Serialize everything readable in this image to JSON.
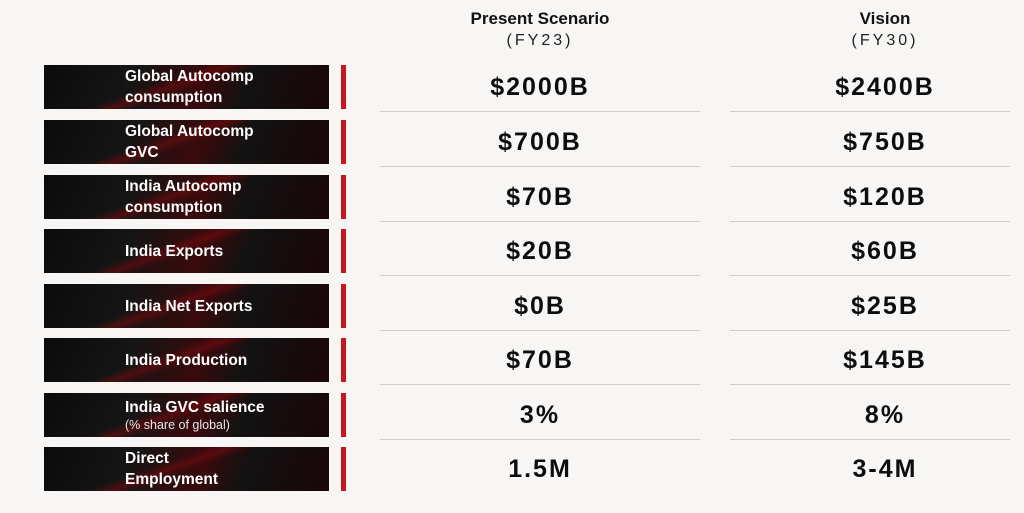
{
  "columns": {
    "present": {
      "title": "Present Scenario",
      "subtitle": "(FY23)"
    },
    "vision": {
      "title": "Vision",
      "subtitle": "(FY30)"
    }
  },
  "rows": [
    {
      "label_line1": "Global Autocomp",
      "label_line2": "consumption",
      "note": "",
      "present": "$2000B",
      "vision": "$2400B"
    },
    {
      "label_line1": "Global Autocomp",
      "label_line2": "GVC",
      "note": "",
      "present": "$700B",
      "vision": "$750B"
    },
    {
      "label_line1": "India Autocomp",
      "label_line2": "consumption",
      "note": "",
      "present": "$70B",
      "vision": "$120B"
    },
    {
      "label_line1": "India Exports",
      "label_line2": "",
      "note": "",
      "present": "$20B",
      "vision": "$60B"
    },
    {
      "label_line1": "India Net Exports",
      "label_line2": "",
      "note": "",
      "present": "$0B",
      "vision": "$25B"
    },
    {
      "label_line1": "India Production",
      "label_line2": "",
      "note": "",
      "present": "$70B",
      "vision": "$145B"
    },
    {
      "label_line1": "India GVC salience",
      "label_line2": "",
      "note": "(% share of global)",
      "present": "3%",
      "vision": "8%"
    },
    {
      "label_line1": "Direct",
      "label_line2": "Employment",
      "note": "",
      "present": "1.5M",
      "vision": "3-4M"
    }
  ],
  "colors": {
    "accent_bar": "#c8171f",
    "label_bg": "#111111",
    "page_bg": "#f8f6f4"
  }
}
